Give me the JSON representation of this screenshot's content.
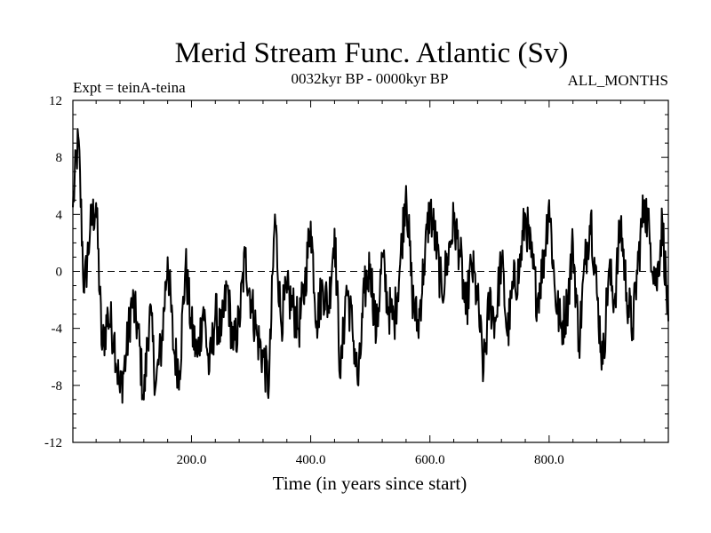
{
  "chart_data": {
    "type": "line",
    "title": "Merid Stream Func. Atlantic (Sv)",
    "experiment_label": "Expt = teinA-teina",
    "period_label": "0032kyr BP - 0000kyr BP",
    "months_label": "ALL_MONTHS",
    "xlabel": "Time (in years since start)",
    "ylabel": "",
    "xlim": [
      1,
      1000
    ],
    "ylim": [
      -12,
      12
    ],
    "x_ticks": [
      200,
      400,
      600,
      800
    ],
    "x_tick_labels": [
      "200.0",
      "400.0",
      "600.0",
      "800.0"
    ],
    "y_ticks": [
      -12,
      -8,
      -4,
      0,
      4,
      8,
      12
    ],
    "y_tick_labels": [
      "-12",
      "-8",
      "-4",
      "0",
      "4",
      "8",
      "12"
    ],
    "reference_line": 0,
    "series": [
      {
        "name": "teinA-teina",
        "x": [
          1,
          10,
          20,
          30,
          40,
          50,
          60,
          70,
          80,
          90,
          100,
          110,
          120,
          130,
          140,
          150,
          160,
          170,
          180,
          190,
          200,
          210,
          220,
          230,
          240,
          250,
          260,
          270,
          280,
          290,
          300,
          310,
          320,
          330,
          340,
          350,
          360,
          370,
          380,
          390,
          400,
          410,
          420,
          430,
          440,
          450,
          460,
          470,
          480,
          490,
          500,
          510,
          520,
          530,
          540,
          550,
          560,
          570,
          580,
          590,
          600,
          610,
          620,
          630,
          640,
          650,
          660,
          670,
          680,
          690,
          700,
          710,
          720,
          730,
          740,
          750,
          760,
          770,
          780,
          790,
          800,
          810,
          820,
          830,
          840,
          850,
          860,
          870,
          880,
          890,
          900,
          910,
          920,
          930,
          940,
          950,
          960,
          970,
          980,
          990,
          1000
        ],
        "values": [
          4.5,
          9.5,
          -1.5,
          3.0,
          4.8,
          -5.5,
          -3.0,
          -4.5,
          -8.5,
          -6.0,
          -2.0,
          -4.0,
          -9.0,
          -2.5,
          -8.0,
          -5.0,
          1.0,
          -5.5,
          -7.0,
          0.5,
          -4.0,
          -6.0,
          -2.5,
          -7.0,
          -3.0,
          -4.5,
          -1.0,
          -5.5,
          -3.5,
          1.0,
          -2.0,
          -4.5,
          -6.0,
          -8.0,
          4.0,
          -3.5,
          -1.5,
          -2.5,
          -4.0,
          -1.0,
          3.5,
          -3.5,
          -1.0,
          -2.5,
          3.0,
          -7.5,
          -1.0,
          -4.0,
          -8.0,
          -1.5,
          0.5,
          -4.5,
          1.0,
          -2.5,
          -3.5,
          0.5,
          6.0,
          -1.5,
          -4.0,
          0.5,
          4.5,
          2.0,
          -1.5,
          1.0,
          3.5,
          1.5,
          -3.0,
          0.5,
          -2.0,
          -7.0,
          -2.0,
          -3.5,
          1.0,
          -4.5,
          -1.0,
          0.0,
          4.0,
          1.0,
          -2.0,
          0.5,
          5.0,
          -1.5,
          -4.0,
          -2.5,
          2.0,
          -5.0,
          0.5,
          4.0,
          -1.5,
          -6.5,
          0.0,
          -2.0,
          3.5,
          -1.5,
          -4.0,
          1.0,
          5.0,
          2.0,
          -1.0,
          3.5,
          -3.5
        ]
      }
    ]
  }
}
